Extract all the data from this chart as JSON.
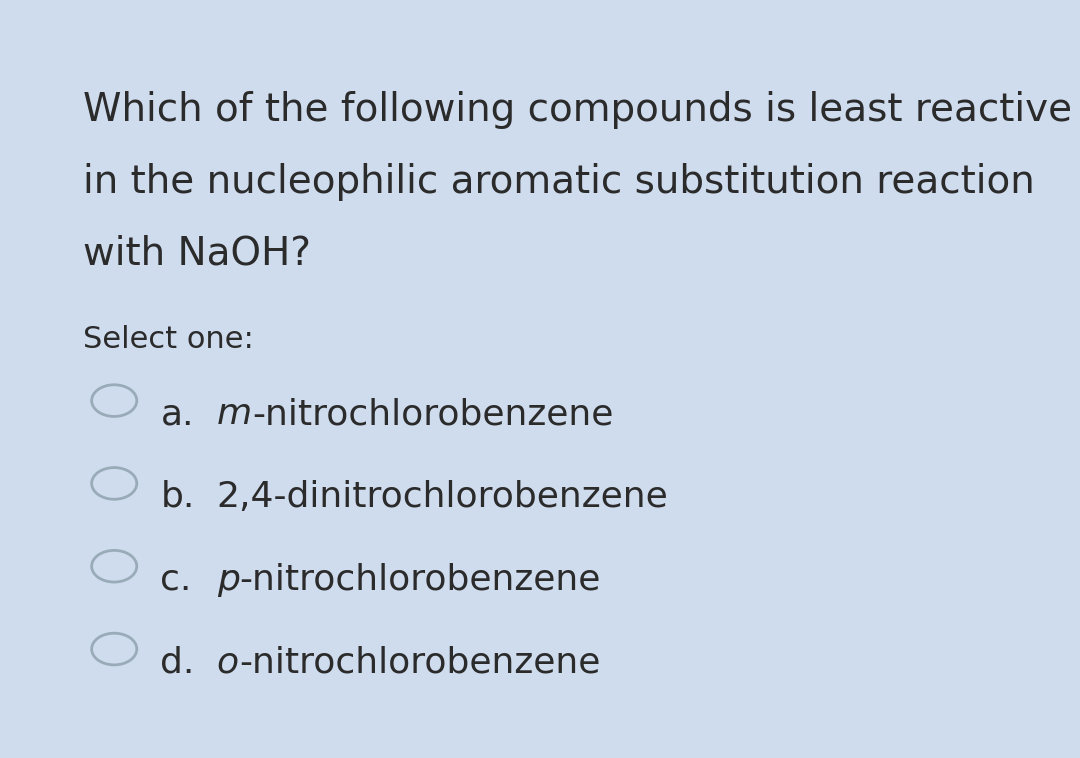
{
  "background_color": "#cfdcee",
  "card_color": "#eaf1f8",
  "question_text_lines": [
    "Which of the following compounds is least reactive",
    "in the nucleophilic aromatic substitution reaction",
    "with NaOH?"
  ],
  "select_text": "Select one:",
  "options": [
    {
      "label": "a.",
      "text_italic": "m",
      "text_normal": "-nitrochlorobenzene"
    },
    {
      "label": "b.",
      "text_italic": "",
      "text_normal": "2,4-dinitrochlorobenzene"
    },
    {
      "label": "c.",
      "text_italic": "p",
      "text_normal": "-nitrochlorobenzene"
    },
    {
      "label": "d.",
      "text_italic": "o",
      "text_normal": "-nitrochlorobenzene"
    }
  ],
  "text_color": "#2b2b2b",
  "circle_edge_color": "#9aabb8",
  "fig_width": 10.8,
  "fig_height": 7.58,
  "dpi": 100
}
